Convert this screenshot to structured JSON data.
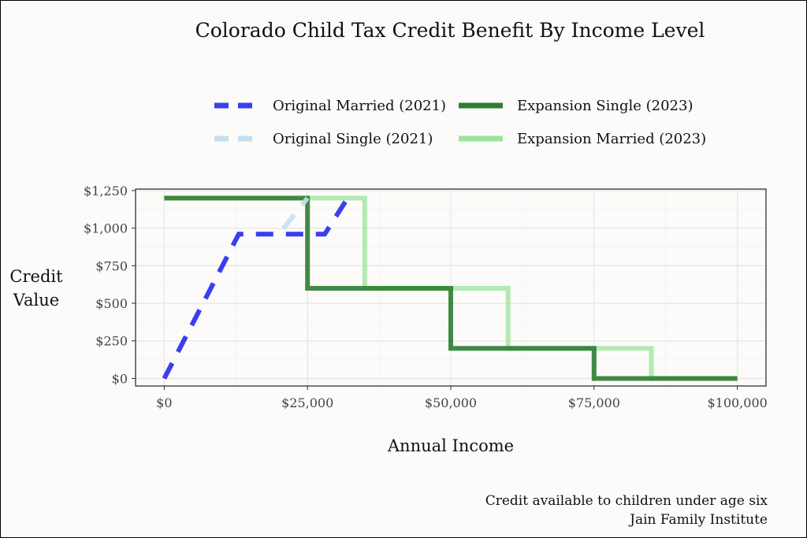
{
  "chart_data": {
    "type": "line",
    "title": "Colorado Child Tax Credit Benefit By Income Level",
    "xlabel": "Annual Income",
    "ylabel": "Credit Value",
    "xlim": [
      -5000,
      105000
    ],
    "ylim": [
      -50,
      1260
    ],
    "x_ticks": [
      0,
      25000,
      50000,
      75000,
      100000
    ],
    "x_tick_labels": [
      "$0",
      "$25,000",
      "$50,000",
      "$75,000",
      "$100,000"
    ],
    "y_ticks": [
      0,
      250,
      500,
      750,
      1000,
      1250
    ],
    "y_tick_labels": [
      "$0",
      "$250",
      "$500",
      "$750",
      "$1,000",
      "$1,250"
    ],
    "grid": true,
    "legend_position": "top",
    "series": [
      {
        "name": "Original Married (2021)",
        "color": "#3a3ef0",
        "dash": "long-dash",
        "points": [
          [
            0,
            0
          ],
          [
            13000,
            960
          ],
          [
            28000,
            960
          ],
          [
            32000,
            1200
          ]
        ]
      },
      {
        "name": "Original Single (2021)",
        "color": "#c4dff0",
        "dash": "long-dash",
        "points": [
          [
            0,
            0
          ],
          [
            13000,
            960
          ],
          [
            20000,
            960
          ],
          [
            25000,
            1200
          ]
        ]
      },
      {
        "name": "Expansion Single (2023)",
        "color": "#2e7d32",
        "dash": "solid",
        "points": [
          [
            0,
            1200
          ],
          [
            25000,
            1200
          ],
          [
            25000,
            600
          ],
          [
            50000,
            600
          ],
          [
            50000,
            200
          ],
          [
            75000,
            200
          ],
          [
            75000,
            0
          ],
          [
            100000,
            0
          ]
        ]
      },
      {
        "name": "Expansion Married (2023)",
        "color": "#9be39b",
        "dash": "solid",
        "points": [
          [
            0,
            1200
          ],
          [
            35000,
            1200
          ],
          [
            35000,
            600
          ],
          [
            60000,
            600
          ],
          [
            60000,
            200
          ],
          [
            85000,
            200
          ],
          [
            85000,
            0
          ],
          [
            100000,
            0
          ]
        ]
      }
    ]
  },
  "legend": {
    "original_married": "Original Married (2021)",
    "original_single": "Original Single (2021)",
    "expansion_single": "Expansion Single (2023)",
    "expansion_married": "Expansion Married (2023)"
  },
  "ylabel_line1": "Credit",
  "ylabel_line2": "Value",
  "caption": {
    "line1": "Credit available to children under age six",
    "line2": "Jain Family Institute"
  }
}
